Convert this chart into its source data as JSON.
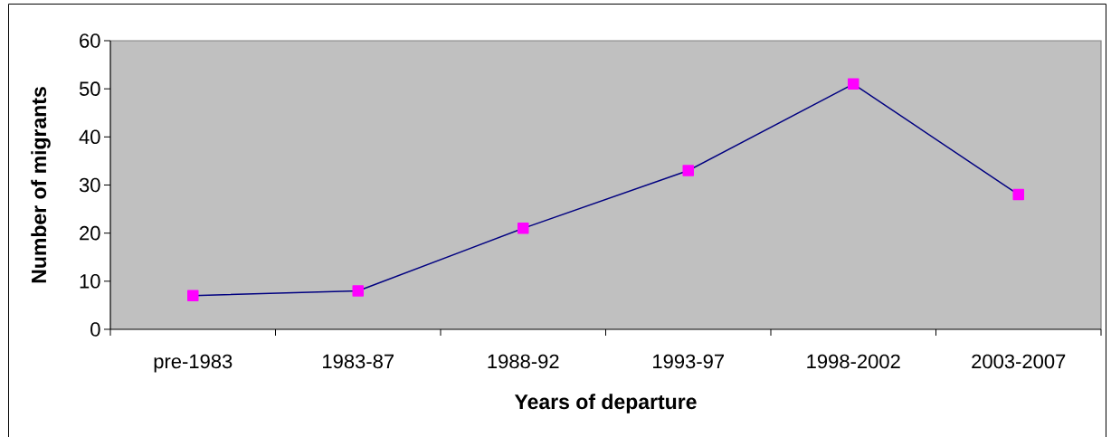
{
  "chart_data": {
    "type": "line",
    "xlabel": "Years of departure",
    "ylabel": "Number of migrants",
    "categories": [
      "pre-1983",
      "1983-87",
      "1988-92",
      "1993-97",
      "1998-2002",
      "2003-2007"
    ],
    "series": [
      {
        "color": "#000080",
        "colors": [
          "#ff00ff",
          "#ff00ff",
          "#ff00ff",
          "#ff00ff",
          "#ff00ff",
          "#ff00ff"
        ],
        "values": [
          7,
          8,
          21,
          33,
          51,
          28
        ]
      }
    ],
    "ylim": [
      0,
      60
    ],
    "yticks": [
      0,
      10,
      20,
      30,
      40,
      50,
      60
    ],
    "marker": "square",
    "line_style": "solid"
  }
}
